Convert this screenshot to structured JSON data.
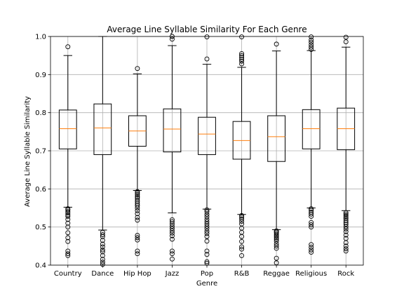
{
  "chart_data": {
    "type": "box",
    "title": "Average Line Syllable Similarity For Each Genre",
    "xlabel": "Genre",
    "ylabel": "Average Line Syllable Similarity",
    "ylim": [
      0.4,
      1.0
    ],
    "yticks": [
      "0.4",
      "0.5",
      "0.6",
      "0.7",
      "0.8",
      "0.9",
      "1.0"
    ],
    "grid": true,
    "colors": {
      "box": "#000000",
      "median": "#ff7f0e",
      "grid": "#b0b0b0"
    },
    "categories": [
      "Country",
      "Dance",
      "Hip Hop",
      "Jazz",
      "Pop",
      "R&B",
      "Reggae",
      "Religious",
      "Rock"
    ],
    "boxes": [
      {
        "whisker_low": 0.552,
        "q1": 0.705,
        "median": 0.758,
        "q3": 0.807,
        "whisker_high": 0.95,
        "outliers": [
          0.973,
          0.548,
          0.545,
          0.541,
          0.537,
          0.532,
          0.528,
          0.52,
          0.51,
          0.5,
          0.485,
          0.472,
          0.462,
          0.437,
          0.43,
          0.425
        ]
      },
      {
        "whisker_low": 0.492,
        "q1": 0.69,
        "median": 0.76,
        "q3": 0.823,
        "whisker_high": 1.0,
        "outliers": [
          0.486,
          0.48,
          0.475,
          0.465,
          0.455,
          0.448,
          0.44,
          0.435,
          0.425,
          0.415,
          0.408,
          0.402
        ]
      },
      {
        "whisker_low": 0.596,
        "q1": 0.712,
        "median": 0.752,
        "q3": 0.792,
        "whisker_high": 0.902,
        "outliers": [
          0.916,
          0.593,
          0.589,
          0.585,
          0.58,
          0.576,
          0.571,
          0.566,
          0.561,
          0.556,
          0.55,
          0.543,
          0.535,
          0.525,
          0.518,
          0.478,
          0.472,
          0.466,
          0.437,
          0.43
        ]
      },
      {
        "whisker_low": 0.537,
        "q1": 0.697,
        "median": 0.757,
        "q3": 0.81,
        "whisker_high": 0.976,
        "outliers": [
          1.0,
          0.993,
          0.519,
          0.514,
          0.508,
          0.502,
          0.496,
          0.49,
          0.484,
          0.477,
          0.468,
          0.437,
          0.43,
          0.416
        ]
      },
      {
        "whisker_low": 0.547,
        "q1": 0.69,
        "median": 0.744,
        "q3": 0.788,
        "whisker_high": 0.927,
        "outliers": [
          0.999,
          0.941,
          0.545,
          0.54,
          0.533,
          0.527,
          0.52,
          0.514,
          0.508,
          0.502,
          0.496,
          0.489,
          0.483,
          0.475,
          0.463,
          0.437,
          0.428,
          0.409,
          0.405
        ]
      },
      {
        "whisker_low": 0.533,
        "q1": 0.678,
        "median": 0.727,
        "q3": 0.777,
        "whisker_high": 0.919,
        "outliers": [
          0.999,
          0.955,
          0.95,
          0.945,
          0.94,
          0.935,
          0.928,
          0.53,
          0.526,
          0.521,
          0.515,
          0.508,
          0.497,
          0.486,
          0.475,
          0.462,
          0.448,
          0.442,
          0.425
        ]
      },
      {
        "whisker_low": 0.493,
        "q1": 0.672,
        "median": 0.737,
        "q3": 0.792,
        "whisker_high": 0.962,
        "outliers": [
          0.98,
          0.49,
          0.487,
          0.484,
          0.48,
          0.476,
          0.472,
          0.468,
          0.463,
          0.456,
          0.45,
          0.444,
          0.418,
          0.406
        ]
      },
      {
        "whisker_low": 0.55,
        "q1": 0.705,
        "median": 0.758,
        "q3": 0.808,
        "whisker_high": 0.963,
        "outliers": [
          0.999,
          0.991,
          0.985,
          0.978,
          0.972,
          0.966,
          0.548,
          0.544,
          0.539,
          0.534,
          0.528,
          0.512,
          0.506,
          0.5,
          0.454,
          0.447,
          0.44,
          0.434
        ]
      },
      {
        "whisker_low": 0.543,
        "q1": 0.703,
        "median": 0.758,
        "q3": 0.812,
        "whisker_high": 0.972,
        "outliers": [
          0.998,
          0.986,
          0.538,
          0.534,
          0.53,
          0.526,
          0.522,
          0.517,
          0.512,
          0.507,
          0.501,
          0.495,
          0.488,
          0.479,
          0.47,
          0.459,
          0.45,
          0.443,
          0.437
        ]
      }
    ]
  }
}
